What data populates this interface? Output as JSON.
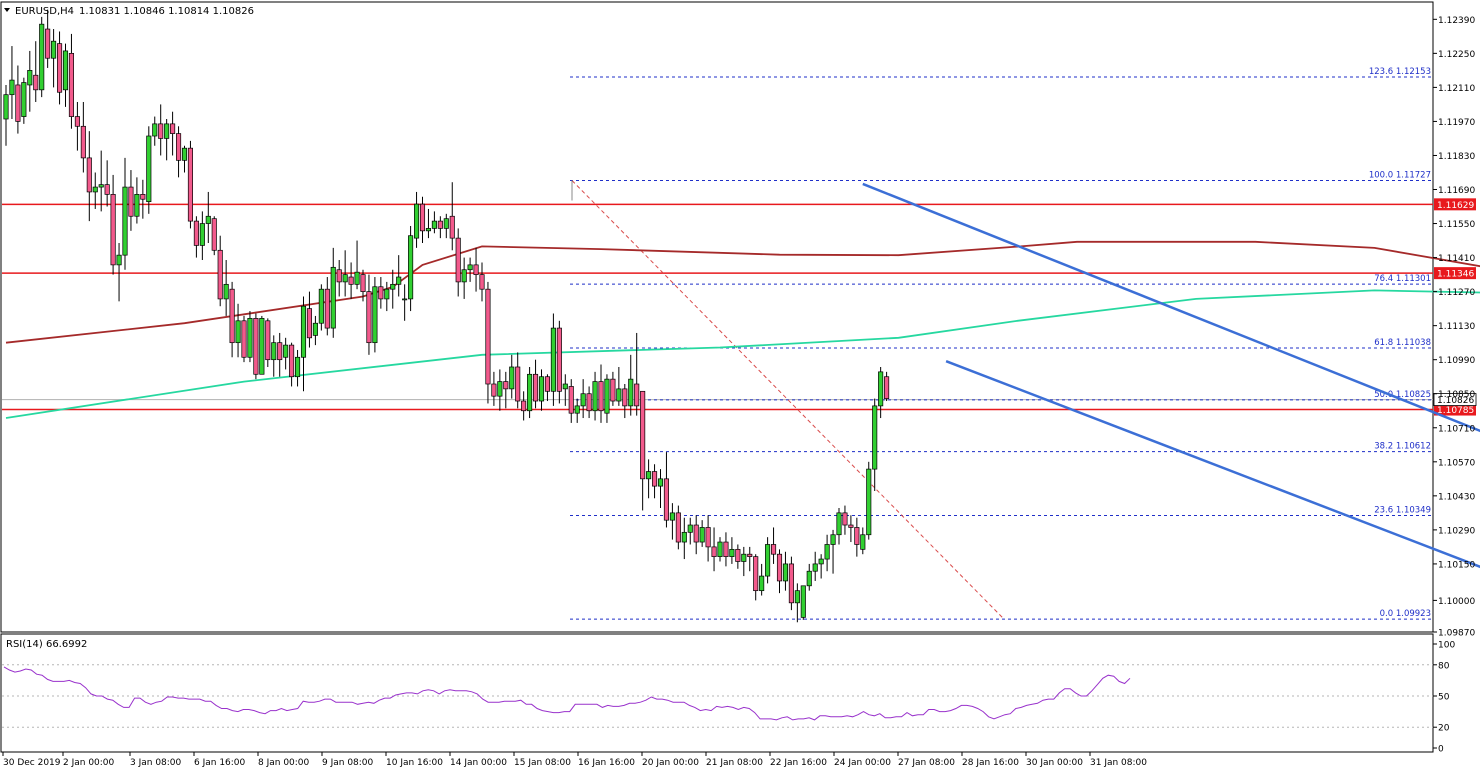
{
  "header": {
    "symbol": "EURUSD,H4",
    "ohlc": "1.10831 1.10846 1.10814 1.10826"
  },
  "chart_data": {
    "type": "candlestick",
    "symbol": "EURUSD",
    "timeframe": "H4",
    "ohlc_last": {
      "open": 1.10831,
      "high": 1.10846,
      "low": 1.10814,
      "close": 1.10826
    },
    "price_axis": {
      "ylim": [
        1.0987,
        1.12453
      ],
      "ticks": [
        "1.12390",
        "1.12250",
        "1.12110",
        "1.11970",
        "1.11830",
        "1.11690",
        "1.11550",
        "1.11410",
        "1.11270",
        "1.11130",
        "1.10990",
        "1.10850",
        "1.10710",
        "1.10570",
        "1.10430",
        "1.10290",
        "1.10150",
        "1.10000",
        "1.09870"
      ]
    },
    "time_axis": {
      "ticks": [
        "30 Dec 2019",
        "2 Jan 00:00",
        "3 Jan 08:00",
        "6 Jan 16:00",
        "8 Jan 00:00",
        "9 Jan 08:00",
        "10 Jan 16:00",
        "14 Jan 00:00",
        "15 Jan 08:00",
        "16 Jan 16:00",
        "20 Jan 00:00",
        "21 Jan 08:00",
        "22 Jan 16:00",
        "24 Jan 00:00",
        "27 Jan 08:00",
        "28 Jan 16:00",
        "30 Jan 00:00",
        "31 Jan 08:00"
      ]
    },
    "horizontal_levels": [
      {
        "price": 1.11629,
        "label": "1.11629",
        "color": "#e8191d"
      },
      {
        "price": 1.11346,
        "label": "1.11346",
        "color": "#e8191d"
      },
      {
        "price": 1.10785,
        "label": "1.10785",
        "color": "#e8191d"
      }
    ],
    "current_price": {
      "price": 1.10826,
      "label": "1.10826"
    },
    "fibonacci": {
      "color": "#1f2fc8",
      "levels": [
        {
          "ratio": "123.6",
          "price": 1.12153
        },
        {
          "ratio": "100.0",
          "price": 1.11727
        },
        {
          "ratio": "76.4",
          "price": 1.11301
        },
        {
          "ratio": "61.8",
          "price": 1.11038
        },
        {
          "ratio": "50.0",
          "price": 1.10825
        },
        {
          "ratio": "38.2",
          "price": 1.10612
        },
        {
          "ratio": "23.6",
          "price": 1.10349
        },
        {
          "ratio": "0.0",
          "price": 1.09923
        }
      ]
    },
    "moving_averages": [
      {
        "color": "#a52a2a",
        "points": [
          [
            0,
            1.1106
          ],
          [
            30,
            1.1114
          ],
          [
            60,
            1.1125
          ],
          [
            65,
            1.1129
          ],
          [
            70,
            1.1138
          ],
          [
            80,
            1.11456
          ],
          [
            100,
            1.11445
          ],
          [
            130,
            1.11422
          ],
          [
            150,
            1.1142
          ],
          [
            170,
            1.11455
          ],
          [
            180,
            1.11475
          ],
          [
            210,
            1.11475
          ],
          [
            230,
            1.1145
          ],
          [
            250,
            1.11365
          ],
          [
            270,
            1.11225
          ],
          [
            290,
            1.11075
          ],
          [
            308,
            1.1092
          ],
          [
            327,
            1.10815
          ]
        ]
      },
      {
        "color": "#26d8a0",
        "points": [
          [
            0,
            1.1075
          ],
          [
            40,
            1.109
          ],
          [
            80,
            1.1101
          ],
          [
            120,
            1.1104
          ],
          [
            150,
            1.1108
          ],
          [
            170,
            1.1115
          ],
          [
            200,
            1.1124
          ],
          [
            230,
            1.11275
          ],
          [
            250,
            1.11265
          ],
          [
            270,
            1.11225
          ],
          [
            290,
            1.1118
          ],
          [
            307,
            1.1114
          ]
        ]
      }
    ],
    "channel": {
      "color": "#3c6fd6",
      "upper": [
        [
          144,
          1.11713
        ],
        [
          296,
          1.10225
        ]
      ],
      "lower": [
        [
          158,
          1.10984
        ],
        [
          278,
          1.09853
        ]
      ]
    },
    "projection_arrows": {
      "color": "#1aa03c",
      "down": [
        [
          311,
          1.1088
        ],
        [
          321,
          1.10638
        ]
      ],
      "up": [
        [
          324,
          1.10622
        ],
        [
          333,
          1.1114
        ]
      ]
    },
    "candles": [
      [
        1.1198,
        1.1212,
        1.1187,
        1.1208
      ],
      [
        1.1208,
        1.1228,
        1.1198,
        1.1214
      ],
      [
        1.1212,
        1.122,
        1.1192,
        1.1197
      ],
      [
        1.1199,
        1.1215,
        1.1196,
        1.1213
      ],
      [
        1.1212,
        1.1226,
        1.1201,
        1.1218
      ],
      [
        1.1216,
        1.123,
        1.1205,
        1.121
      ],
      [
        1.121,
        1.124,
        1.1207,
        1.1237
      ],
      [
        1.1235,
        1.1243,
        1.1219,
        1.1223
      ],
      [
        1.1223,
        1.1235,
        1.1211,
        1.123
      ],
      [
        1.1229,
        1.1234,
        1.1204,
        1.1209
      ],
      [
        1.121,
        1.1229,
        1.1203,
        1.1226
      ],
      [
        1.1225,
        1.1233,
        1.1194,
        1.1199
      ],
      [
        1.1199,
        1.1205,
        1.1185,
        1.1195
      ],
      [
        1.1195,
        1.1205,
        1.1176,
        1.1182
      ],
      [
        1.1182,
        1.1193,
        1.1156,
        1.1168
      ],
      [
        1.1168,
        1.1176,
        1.1161,
        1.117
      ],
      [
        1.117,
        1.1185,
        1.116,
        1.1171
      ],
      [
        1.1171,
        1.1181,
        1.1162,
        1.1167
      ],
      [
        1.1167,
        1.1175,
        1.1134,
        1.1138
      ],
      [
        1.1138,
        1.1147,
        1.1123,
        1.1142
      ],
      [
        1.1142,
        1.1182,
        1.1136,
        1.117
      ],
      [
        1.117,
        1.1177,
        1.1152,
        1.1158
      ],
      [
        1.1158,
        1.1174,
        1.1155,
        1.1167
      ],
      [
        1.1167,
        1.1173,
        1.1157,
        1.1165
      ],
      [
        1.1164,
        1.1195,
        1.1159,
        1.1191
      ],
      [
        1.1191,
        1.1199,
        1.1187,
        1.1196
      ],
      [
        1.1196,
        1.1204,
        1.1183,
        1.119
      ],
      [
        1.119,
        1.1198,
        1.1181,
        1.1196
      ],
      [
        1.1196,
        1.1201,
        1.1183,
        1.1192
      ],
      [
        1.1192,
        1.1195,
        1.1174,
        1.1181
      ],
      [
        1.1181,
        1.1187,
        1.1176,
        1.1186
      ],
      [
        1.1186,
        1.1189,
        1.1153,
        1.1156
      ],
      [
        1.1156,
        1.1158,
        1.1141,
        1.1146
      ],
      [
        1.1146,
        1.116,
        1.114,
        1.1155
      ],
      [
        1.1155,
        1.1168,
        1.1147,
        1.1158
      ],
      [
        1.1157,
        1.1158,
        1.1142,
        1.1144
      ],
      [
        1.1144,
        1.115,
        1.1121,
        1.1124
      ],
      [
        1.1124,
        1.114,
        1.1117,
        1.113
      ],
      [
        1.1128,
        1.1131,
        1.11,
        1.1106
      ],
      [
        1.1106,
        1.1122,
        1.11,
        1.1115
      ],
      [
        1.1115,
        1.1117,
        1.1098,
        1.11
      ],
      [
        1.11,
        1.1119,
        1.1098,
        1.1116
      ],
      [
        1.1116,
        1.1118,
        1.1091,
        1.1093
      ],
      [
        1.1093,
        1.1117,
        1.1093,
        1.1116
      ],
      [
        1.1115,
        1.1116,
        1.1096,
        1.1099
      ],
      [
        1.1099,
        1.1109,
        1.1092,
        1.1106
      ],
      [
        1.1106,
        1.111,
        1.1092,
        1.1099
      ],
      [
        1.11,
        1.1108,
        1.1095,
        1.1105
      ],
      [
        1.1105,
        1.1106,
        1.1088,
        1.1092
      ],
      [
        1.1092,
        1.1103,
        1.1088,
        1.11
      ],
      [
        1.11,
        1.1125,
        1.1086,
        1.1121
      ],
      [
        1.112,
        1.1127,
        1.1104,
        1.1108
      ],
      [
        1.1109,
        1.1117,
        1.1105,
        1.1114
      ],
      [
        1.1114,
        1.113,
        1.1111,
        1.1128
      ],
      [
        1.1128,
        1.1133,
        1.1109,
        1.1112
      ],
      [
        1.1112,
        1.1145,
        1.1108,
        1.1137
      ],
      [
        1.1136,
        1.114,
        1.1125,
        1.1131
      ],
      [
        1.1131,
        1.1144,
        1.1125,
        1.1134
      ],
      [
        1.1133,
        1.1139,
        1.1124,
        1.113
      ],
      [
        1.113,
        1.1148,
        1.1128,
        1.1135
      ],
      [
        1.1134,
        1.1136,
        1.1123,
        1.1127
      ],
      [
        1.1127,
        1.1134,
        1.1101,
        1.1106
      ],
      [
        1.1106,
        1.1133,
        1.1102,
        1.1129
      ],
      [
        1.1129,
        1.1133,
        1.112,
        1.1124
      ],
      [
        1.1124,
        1.1131,
        1.1119,
        1.1128
      ],
      [
        1.1128,
        1.1136,
        1.112,
        1.113
      ],
      [
        1.113,
        1.1142,
        1.1125,
        1.1133
      ],
      [
        1.1124,
        1.113,
        1.1115,
        1.1124
      ],
      [
        1.1124,
        1.1154,
        1.1119,
        1.115
      ],
      [
        1.1149,
        1.1168,
        1.1145,
        1.1163
      ],
      [
        1.1163,
        1.1166,
        1.1147,
        1.1152
      ],
      [
        1.1152,
        1.1161,
        1.1149,
        1.1153
      ],
      [
        1.1153,
        1.116,
        1.1151,
        1.1156
      ],
      [
        1.1156,
        1.1158,
        1.1149,
        1.1153
      ],
      [
        1.1153,
        1.1159,
        1.1149,
        1.1157
      ],
      [
        1.1158,
        1.1172,
        1.1144,
        1.1149
      ],
      [
        1.1149,
        1.1153,
        1.1125,
        1.1131
      ],
      [
        1.1131,
        1.1141,
        1.1124,
        1.1136
      ],
      [
        1.1136,
        1.1141,
        1.1131,
        1.1138
      ],
      [
        1.1138,
        1.1145,
        1.1127,
        1.1134
      ],
      [
        1.1134,
        1.1139,
        1.1123,
        1.1128
      ],
      [
        1.1128,
        1.1131,
        1.1081,
        1.1089
      ],
      [
        1.1089,
        1.1094,
        1.108,
        1.1084
      ],
      [
        1.1084,
        1.1095,
        1.1078,
        1.109
      ],
      [
        1.109,
        1.1094,
        1.1079,
        1.1087
      ],
      [
        1.1087,
        1.1101,
        1.1083,
        1.1096
      ],
      [
        1.1096,
        1.1102,
        1.1079,
        1.1082
      ],
      [
        1.1082,
        1.1086,
        1.1074,
        1.1078
      ],
      [
        1.1078,
        1.1096,
        1.1075,
        1.1093
      ],
      [
        1.1093,
        1.1099,
        1.1079,
        1.1082
      ],
      [
        1.1082,
        1.1095,
        1.1078,
        1.1092
      ],
      [
        1.1092,
        1.1093,
        1.1082,
        1.1086
      ],
      [
        1.1086,
        1.1118,
        1.108,
        1.1112
      ],
      [
        1.1112,
        1.1115,
        1.1081,
        1.1086
      ],
      [
        1.1087,
        1.1093,
        1.108,
        1.1089
      ],
      [
        1.1088,
        1.1091,
        1.1073,
        1.1077
      ],
      [
        1.1077,
        1.1083,
        1.1073,
        1.108
      ],
      [
        1.108,
        1.1091,
        1.1075,
        1.1085
      ],
      [
        1.1085,
        1.1088,
        1.1075,
        1.1078
      ],
      [
        1.1078,
        1.1094,
        1.1074,
        1.109
      ],
      [
        1.109,
        1.1097,
        1.1073,
        1.1078
      ],
      [
        1.1077,
        1.1093,
        1.1073,
        1.1091
      ],
      [
        1.1091,
        1.1094,
        1.108,
        1.1082
      ],
      [
        1.1082,
        1.1096,
        1.108,
        1.1087
      ],
      [
        1.1087,
        1.1089,
        1.1075,
        1.108
      ],
      [
        1.108,
        1.1101,
        1.1076,
        1.1091
      ],
      [
        1.1089,
        1.111,
        1.1076,
        1.108
      ],
      [
        1.1086,
        1.1086,
        1.1037,
        1.105
      ],
      [
        1.105,
        1.1058,
        1.1042,
        1.1053
      ],
      [
        1.1053,
        1.1056,
        1.1042,
        1.1047
      ],
      [
        1.1047,
        1.1054,
        1.1038,
        1.105
      ],
      [
        1.105,
        1.1061,
        1.103,
        1.1033
      ],
      [
        1.1033,
        1.104,
        1.1025,
        1.1036
      ],
      [
        1.1036,
        1.1039,
        1.1021,
        1.1024
      ],
      [
        1.1024,
        1.1034,
        1.1017,
        1.1028
      ],
      [
        1.1028,
        1.1034,
        1.1023,
        1.1031
      ],
      [
        1.1031,
        1.1035,
        1.1019,
        1.1024
      ],
      [
        1.1024,
        1.1033,
        1.1022,
        1.103
      ],
      [
        1.103,
        1.1035,
        1.1016,
        1.1022
      ],
      [
        1.1022,
        1.103,
        1.1012,
        1.1018
      ],
      [
        1.1018,
        1.1026,
        1.1016,
        1.1024
      ],
      [
        1.1024,
        1.1028,
        1.1014,
        1.1018
      ],
      [
        1.1018,
        1.1026,
        1.1015,
        1.1021
      ],
      [
        1.1021,
        1.1023,
        1.1013,
        1.1016
      ],
      [
        1.1016,
        1.1022,
        1.101,
        1.1019
      ],
      [
        1.1019,
        1.1022,
        1.1012,
        1.1018
      ],
      [
        1.1018,
        1.1019,
        1.1,
        1.1004
      ],
      [
        1.1004,
        1.1015,
        1.1002,
        1.101
      ],
      [
        1.101,
        1.1026,
        1.1007,
        1.1023
      ],
      [
        1.1023,
        1.103,
        1.1015,
        1.1019
      ],
      [
        1.1019,
        1.1021,
        1.1003,
        1.1008
      ],
      [
        1.1008,
        1.102,
        1.1004,
        1.1015
      ],
      [
        1.1015,
        1.1018,
        1.0996,
        1.0999
      ],
      [
        1.0999,
        1.1007,
        1.0991,
        1.1004
      ],
      [
        1.0993,
        1.1006,
        1.0992,
        1.1006
      ],
      [
        1.1006,
        1.1015,
        1.1004,
        1.1012
      ],
      [
        1.1012,
        1.102,
        1.1008,
        1.1015
      ],
      [
        1.1015,
        1.1019,
        1.1009,
        1.1017
      ],
      [
        1.1017,
        1.1027,
        1.1012,
        1.1023
      ],
      [
        1.1023,
        1.1029,
        1.1011,
        1.1027
      ],
      [
        1.1027,
        1.1038,
        1.1023,
        1.1036
      ],
      [
        1.1036,
        1.1039,
        1.1027,
        1.1031
      ],
      [
        1.1031,
        1.1035,
        1.1024,
        1.103
      ],
      [
        1.103,
        1.1034,
        1.1018,
        1.1023
      ],
      [
        1.1021,
        1.103,
        1.1019,
        1.1027
      ],
      [
        1.1027,
        1.1057,
        1.1025,
        1.1054
      ],
      [
        1.1054,
        1.1083,
        1.1045,
        1.108
      ],
      [
        1.108,
        1.1096,
        1.1075,
        1.1094
      ],
      [
        1.1092,
        1.1094,
        1.1082,
        1.1083
      ]
    ],
    "rsi": {
      "label": "RSI(14) 66.6992",
      "period": 14,
      "value": 66.6992,
      "ylim": [
        0,
        100
      ],
      "ticks": [
        "100",
        "80",
        "50",
        "20",
        "0"
      ],
      "levels": [
        80,
        50,
        20
      ],
      "color": "#9932cc",
      "values": [
        78,
        75,
        73,
        74,
        76,
        75,
        71,
        70,
        66,
        64,
        64,
        64,
        65,
        63,
        62,
        58,
        52,
        50,
        50,
        47,
        46,
        42,
        39,
        39,
        48,
        48,
        44,
        42,
        44,
        45,
        49,
        49,
        48,
        48,
        47,
        47,
        47,
        45,
        45,
        41,
        38,
        38,
        36,
        35,
        37,
        37,
        36,
        34,
        33,
        36,
        36,
        38,
        36,
        37,
        38,
        45,
        44,
        44,
        45,
        47,
        47,
        44,
        44,
        44,
        44,
        42,
        43,
        44,
        43,
        46,
        48,
        48,
        51,
        52,
        53,
        53,
        52,
        55,
        56,
        55,
        52,
        55,
        56,
        55,
        55,
        55,
        54,
        52,
        47,
        44,
        44,
        44,
        45,
        45,
        45,
        46,
        42,
        42,
        38,
        36,
        35,
        34,
        34,
        35,
        35,
        42,
        42,
        42,
        42,
        42,
        39,
        41,
        40,
        40,
        41,
        43,
        43,
        44,
        46,
        49,
        47,
        47,
        46,
        44,
        44,
        44,
        41,
        39,
        36,
        37,
        36,
        40,
        39,
        40,
        39,
        37,
        39,
        38,
        34,
        28,
        28,
        28,
        27,
        29,
        30,
        27,
        28,
        28,
        29,
        27,
        31,
        31,
        30,
        30,
        30,
        31,
        30,
        32,
        35,
        32,
        31,
        33,
        29,
        29,
        30,
        30,
        34,
        31,
        32,
        32,
        37,
        37,
        35,
        35,
        36,
        38,
        41,
        41,
        40,
        38,
        35,
        30,
        28,
        30,
        32,
        33,
        38,
        39,
        41,
        42,
        43,
        46,
        47,
        47,
        53,
        57,
        57,
        53,
        50,
        50,
        55,
        61,
        67,
        70,
        69,
        64,
        62,
        67
      ]
    }
  }
}
